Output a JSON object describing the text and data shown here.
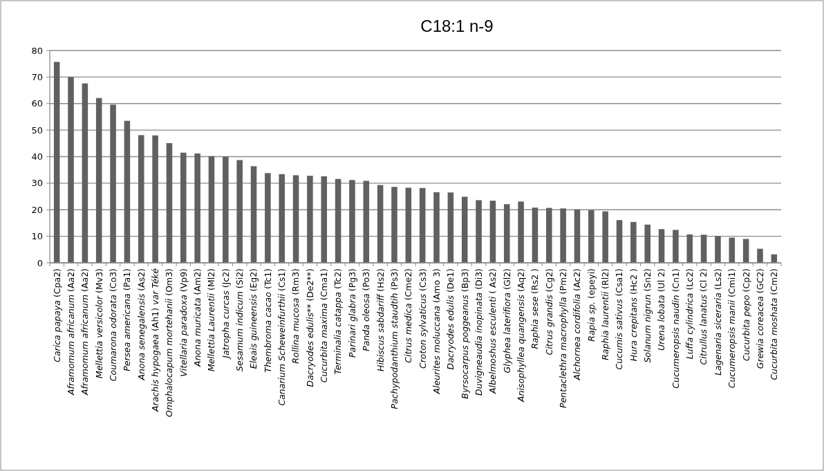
{
  "chart_data": {
    "type": "bar",
    "title": "C18:1 n-9",
    "categories": [
      "Carica papaya (Cpa2)",
      "Aframomum africanum (Aa2)",
      "Aframomum africanum (Aa2)",
      "Mellettia versicolor (Mv3)",
      "Coumarona odorata (Co3)",
      "Persea americana (Pa1)",
      "Anona senegalensis (As2)",
      "Arachis hypogaea (Ah1) var Téké",
      "Omphalocapum mortehanii (Om3)",
      "Vitellaria paradoxa (Vp9)",
      "Anona muricata (Am2)",
      "Mellettia Laurentii (Ml2)",
      "Jatropha curcas (Jc2)",
      "Sesamum indicum (Si2)",
      "Eleais guineensis (Eg2)",
      "Thembroma cacao (Tc1)",
      "Canarium Scheweinfurthii (Cs1)",
      "Rollina mucosa (Rm3)",
      "Dacryodes edulis** (De2**)",
      "Cucurbita maxima (Cma1)",
      "Terminalia catappa (Tc2)",
      "Parinari glabra (Pg3)",
      "Panda oleosa (Po3)",
      "Hibiscus sabdariff (Hs2)",
      "Pachypodanthium staudtih (Ps3)",
      "Citrus medica (Cme2)",
      "Croton sylvaticus (Cs3)",
      "Aleurites moluccana (Amo 3)",
      "Dacryodes edulis (De1)",
      "Byrsocarpus poggeanus (Bp3)",
      "Duvigneaudia inopinata (Di3)",
      "Albelmoshus esculenti ( As2)",
      "Glyphea laterifiora (Gl2)",
      "Anisophyllea quangensis (Aq2)",
      "Raphia sese (Rs2 )",
      "Citrus grandis (Cg2)",
      "Pentaclethra macrophylla (Pm2)",
      "Alchornea cordifolia (Ac2)",
      "Rapia sp. (epeyi)",
      "Raphia laurentii (Rl2)",
      "Cucumis sativus (Csa1)",
      "Hura crepitans (Hc2 )",
      "Solanum nigrun (Sn2)",
      "Urena lobata (Ul 2)",
      "Cucumeropsis naudin (Cn1)",
      "Luffa cylindrica (Lc2)",
      "Citrullus lanatus (Cl 2)",
      "Lagenaria siceraria (Ls2)",
      "Cucumeropsis manii (Cmi1)",
      "Cucurbita pepo (Cp2)",
      "Grewia coreacea (GC2)",
      "Cucurbita moshata (Cm2)"
    ],
    "values": [
      75.7,
      70,
      67.6,
      62.1,
      59.6,
      53.5,
      48.1,
      48,
      45.1,
      41.5,
      41.2,
      40.2,
      40,
      38.7,
      36.4,
      33.8,
      33.4,
      33,
      32.8,
      32.6,
      31.6,
      31.2,
      30.9,
      29.3,
      28.6,
      28.3,
      28.2,
      26.6,
      26.5,
      24.9,
      23.6,
      23.4,
      22.1,
      23.1,
      20.8,
      20.7,
      20.5,
      20.1,
      19.8,
      19.4,
      16.1,
      15.4,
      14.4,
      12.7,
      12.4,
      10.7,
      10.6,
      10.1,
      9.5,
      9.0,
      5.3,
      3.2
    ],
    "color": "#606060",
    "ylim": [
      0,
      80
    ],
    "yticks": [
      0,
      10,
      20,
      30,
      40,
      50,
      60,
      70,
      80
    ],
    "grid": "y"
  }
}
